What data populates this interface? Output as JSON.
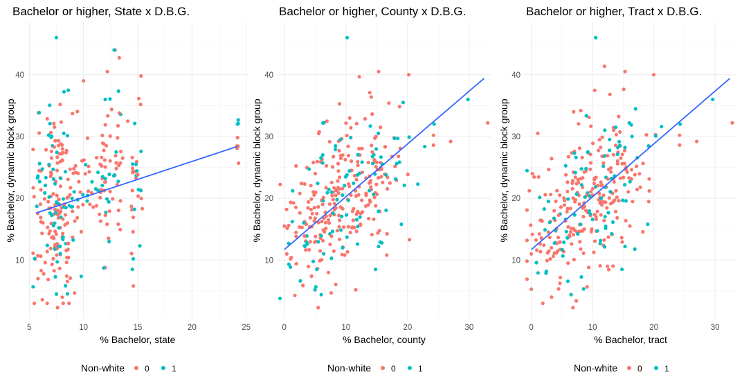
{
  "colors": {
    "group0": "#F8766D",
    "group1": "#00BFC4",
    "fit": "#3366FF"
  },
  "legend": {
    "title": "Non-white",
    "labels": [
      "0",
      "1"
    ]
  },
  "chart_data": [
    {
      "type": "scatter",
      "title": "Bachelor or higher, State x D.B.G.",
      "xlabel": "% Bachelor, state",
      "ylabel": "% Bachelor, dynamic block group",
      "xlim": [
        4.85,
        25.15
      ],
      "ylim": [
        0.5,
        48.5
      ],
      "xticks": [
        5,
        10,
        15,
        20,
        25
      ],
      "yticks": [
        10,
        20,
        30,
        40
      ],
      "fit": {
        "x": [
          5.6,
          24.2
        ],
        "y": [
          17.6,
          28.4
        ]
      },
      "seed": 11,
      "generated_points": {
        "clusters": [
          {
            "x": 5.6,
            "jitter": 0.25,
            "n0": 8,
            "n1": 6,
            "y": [
              17,
              7
            ]
          },
          {
            "x": 6.3,
            "jitter": 0.3,
            "n0": 18,
            "n1": 8,
            "y": [
              18,
              7
            ]
          },
          {
            "x": 7.0,
            "jitter": 0.25,
            "n0": 28,
            "n1": 12,
            "y": [
              20,
              8
            ]
          },
          {
            "x": 7.6,
            "jitter": 0.2,
            "n0": 40,
            "n1": 18,
            "y": [
              18,
              7
            ]
          },
          {
            "x": 8.3,
            "jitter": 0.3,
            "n0": 30,
            "n1": 12,
            "y": [
              19,
              8
            ]
          },
          {
            "x": 9.2,
            "jitter": 0.35,
            "n0": 20,
            "n1": 8,
            "y": [
              19,
              7
            ]
          },
          {
            "x": 10.3,
            "jitter": 0.35,
            "n0": 10,
            "n1": 4,
            "y": [
              22,
              6
            ]
          },
          {
            "x": 11.5,
            "jitter": 0.3,
            "n0": 10,
            "n1": 4,
            "y": [
              22,
              6
            ]
          },
          {
            "x": 12.2,
            "jitter": 0.3,
            "n0": 24,
            "n1": 10,
            "y": [
              23,
              7
            ]
          },
          {
            "x": 13.2,
            "jitter": 0.25,
            "n0": 16,
            "n1": 6,
            "y": [
              24,
              6
            ]
          },
          {
            "x": 14.6,
            "jitter": 0.15,
            "n0": 14,
            "n1": 6,
            "y": [
              21,
              8
            ]
          },
          {
            "x": 15.2,
            "jitter": 0.15,
            "n0": 7,
            "n1": 3,
            "y": [
              22,
              7
            ]
          },
          {
            "x": 24.2,
            "jitter": 0.05,
            "n0": 5,
            "n1": 2,
            "y": [
              30,
              2
            ]
          }
        ],
        "fixed_group0": [
          [
            7.6,
            2.3
          ],
          [
            12.2,
            40.5
          ],
          [
            15.3,
            39.8
          ],
          [
            10.0,
            39.0
          ],
          [
            13.3,
            33.8
          ],
          [
            5.8,
            7.0
          ],
          [
            14.6,
            5.8
          ],
          [
            24.2,
            28.2
          ]
        ],
        "fixed_group1": [
          [
            7.5,
            46.0
          ],
          [
            8.6,
            37.5
          ],
          [
            12.0,
            36.0
          ],
          [
            15.3,
            27.6
          ],
          [
            24.2,
            32.0
          ],
          [
            7.5,
            4.5
          ],
          [
            15.2,
            12.3
          ],
          [
            14.5,
            8.5
          ]
        ]
      }
    },
    {
      "type": "scatter",
      "title": "Bachelor or higher, County x D.B.G.",
      "xlabel": "% Bachelor, county",
      "ylabel": "% Bachelor, dynamic block group",
      "xlim": [
        -1.2,
        33.6
      ],
      "ylim": [
        0.5,
        48.5
      ],
      "xticks": [
        0,
        10,
        20,
        30
      ],
      "yticks": [
        10,
        20,
        30,
        40
      ],
      "fit": {
        "x": [
          0,
          32.4
        ],
        "y": [
          11.7,
          39.4
        ]
      },
      "seed": 23,
      "generated_points": {
        "clusters": [
          {
            "x": 4.0,
            "jitter": 2.5,
            "n0": 70,
            "n1": 22,
            "y": [
              15,
              5
            ]
          },
          {
            "x": 9.0,
            "jitter": 2.5,
            "n0": 100,
            "n1": 32,
            "y": [
              20,
              6
            ]
          },
          {
            "x": 13.5,
            "jitter": 2.0,
            "n0": 60,
            "n1": 22,
            "y": [
              23,
              6
            ]
          },
          {
            "x": 17.5,
            "jitter": 2.0,
            "n0": 18,
            "n1": 10,
            "y": [
              25,
              5
            ]
          }
        ],
        "fixed_group0": [
          [
            20.2,
            40.0
          ],
          [
            15.3,
            40.5
          ],
          [
            33.0,
            32.2
          ],
          [
            27.0,
            29.2
          ],
          [
            24.2,
            28.6
          ],
          [
            24.2,
            30.2
          ],
          [
            5.5,
            2.3
          ],
          [
            0.4,
            11.0
          ]
        ],
        "fixed_group1": [
          [
            10.2,
            46.0
          ],
          [
            29.8,
            36.0
          ],
          [
            24.3,
            32.0
          ],
          [
            19.0,
            15.8
          ],
          [
            15.3,
            12.2
          ],
          [
            14.8,
            8.5
          ],
          [
            6.0,
            4.4
          ]
        ]
      }
    },
    {
      "type": "scatter",
      "title": "Bachelor or higher, Tract x D.B.G.",
      "xlabel": "% Bachelor, tract",
      "ylabel": "% Bachelor, dynamic block group",
      "xlim": [
        -1.2,
        33.6
      ],
      "ylim": [
        0.5,
        48.5
      ],
      "xticks": [
        0,
        10,
        20,
        30
      ],
      "yticks": [
        10,
        20,
        30,
        40
      ],
      "fit": {
        "x": [
          0,
          32.4
        ],
        "y": [
          11.7,
          39.4
        ]
      },
      "seed": 37,
      "generated_points": {
        "clusters": [
          {
            "x": 4.0,
            "jitter": 2.5,
            "n0": 70,
            "n1": 22,
            "y": [
              15,
              5
            ]
          },
          {
            "x": 9.0,
            "jitter": 2.5,
            "n0": 100,
            "n1": 32,
            "y": [
              20,
              6
            ]
          },
          {
            "x": 13.5,
            "jitter": 2.0,
            "n0": 60,
            "n1": 22,
            "y": [
              23,
              6
            ]
          },
          {
            "x": 17.5,
            "jitter": 2.0,
            "n0": 18,
            "n1": 10,
            "y": [
              25,
              5
            ]
          }
        ],
        "fixed_group0": [
          [
            20.0,
            40.0
          ],
          [
            15.3,
            40.5
          ],
          [
            32.8,
            32.2
          ],
          [
            27.0,
            29.2
          ],
          [
            24.2,
            28.6
          ],
          [
            24.2,
            30.2
          ],
          [
            6.8,
            2.3
          ],
          [
            0.0,
            11.0
          ]
        ],
        "fixed_group1": [
          [
            10.5,
            46.0
          ],
          [
            29.6,
            36.0
          ],
          [
            24.3,
            32.0
          ],
          [
            19.0,
            15.8
          ],
          [
            15.3,
            12.2
          ],
          [
            14.8,
            8.5
          ],
          [
            6.5,
            4.4
          ]
        ]
      }
    }
  ]
}
